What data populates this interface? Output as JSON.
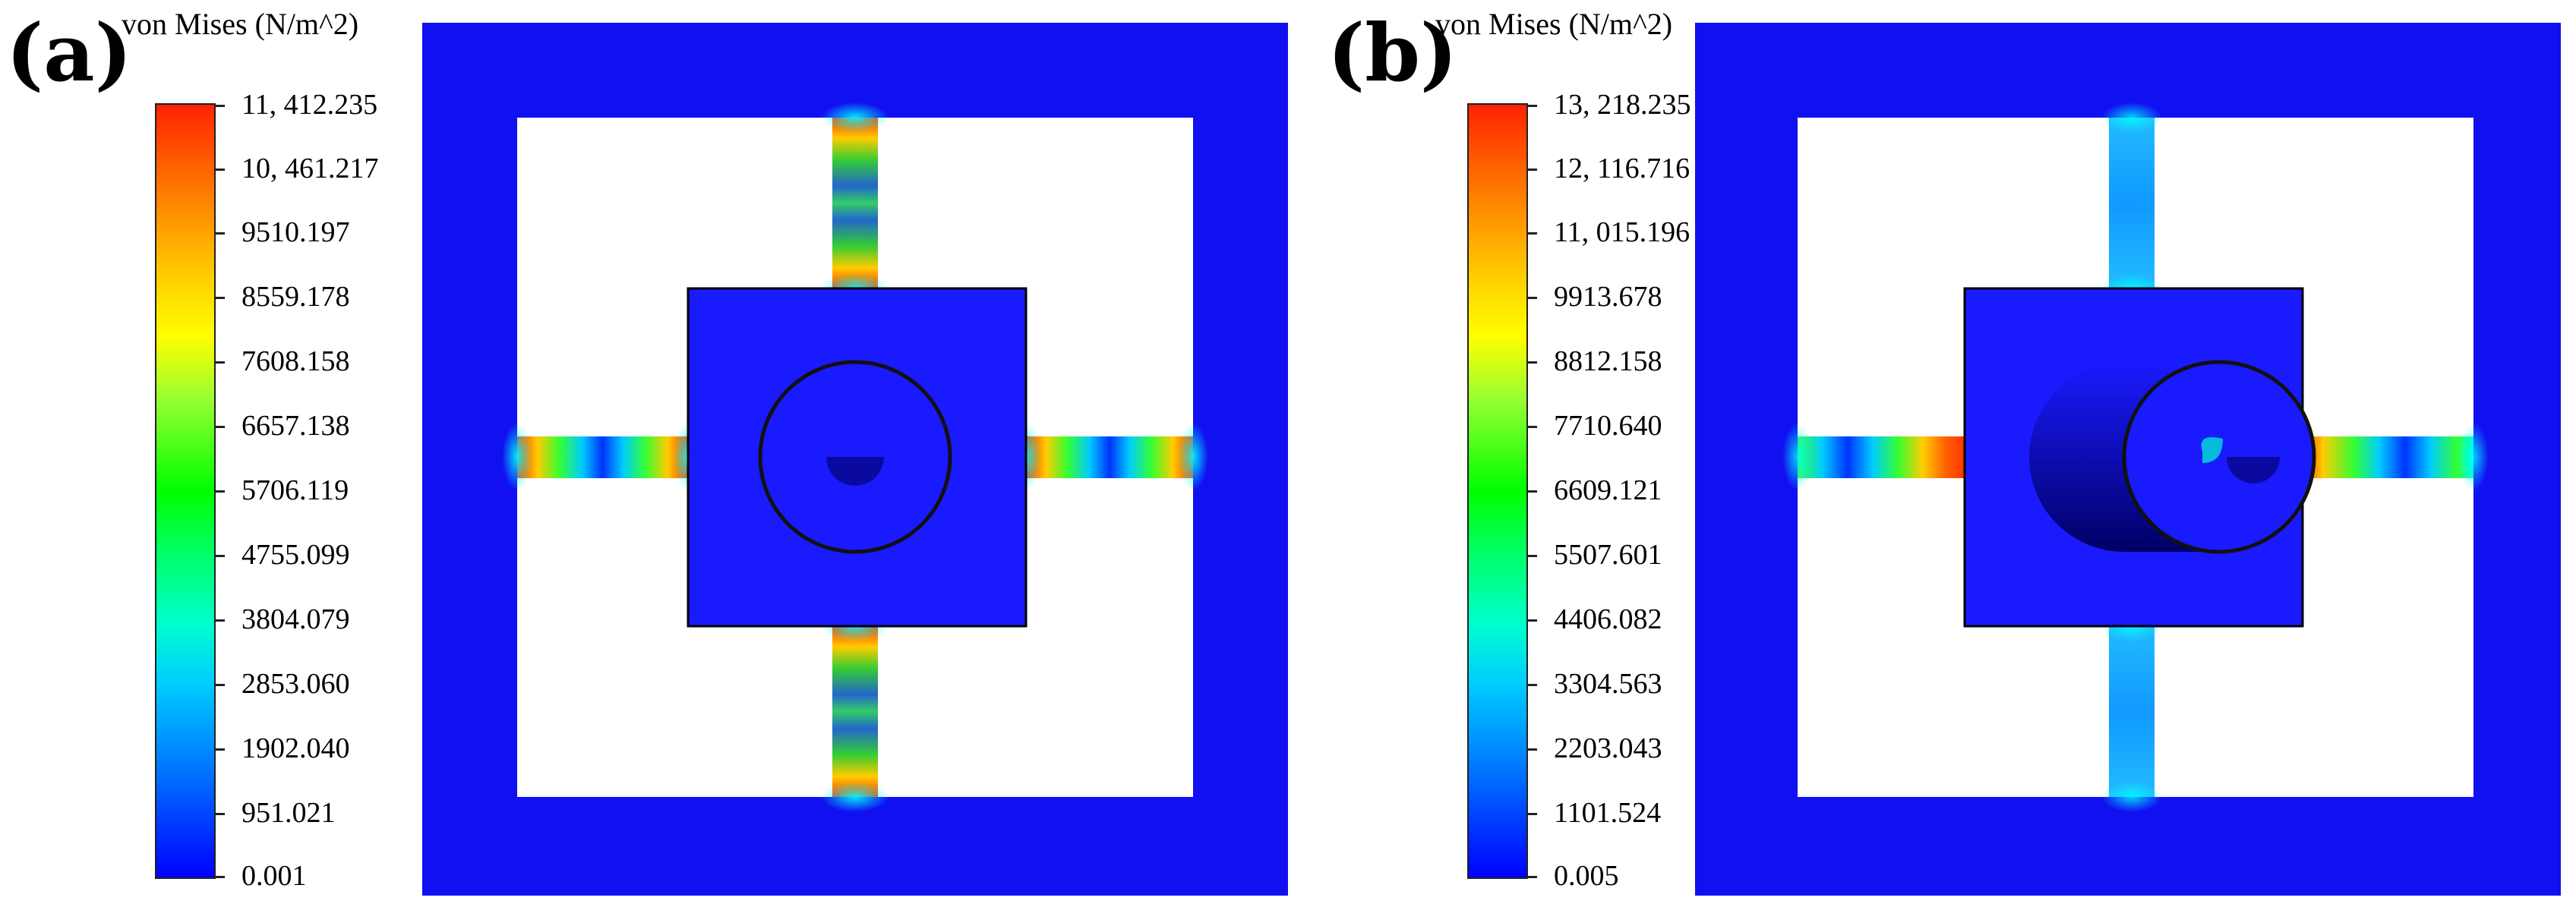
{
  "panels": [
    {
      "label": "(a)",
      "legend_title": "von Mises (N/m^2)",
      "ticks": [
        "11, 412.235",
        "10, 461.217",
        "9510.197",
        "8559.178",
        "7608.158",
        "6657.138",
        "5706.119",
        "4755.099",
        "3804.079",
        "2853.060",
        "1902.040",
        "951.021",
        "0.001"
      ]
    },
    {
      "label": "(b)",
      "legend_title": "von Mises (N/m^2)",
      "ticks": [
        "13, 218.235",
        "12, 116.716",
        "11, 015.196",
        "9913.678",
        "8812.158",
        "7710.640",
        "6609.121",
        "5507.601",
        "4406.082",
        "3304.563",
        "2203.043",
        "1101.524",
        "0.005"
      ]
    }
  ],
  "colors": {
    "low": "#0000ff",
    "high": "#ff2200",
    "plate": "#1a1aff",
    "frame_fill": "#1010f0",
    "window": "#ffffff"
  }
}
